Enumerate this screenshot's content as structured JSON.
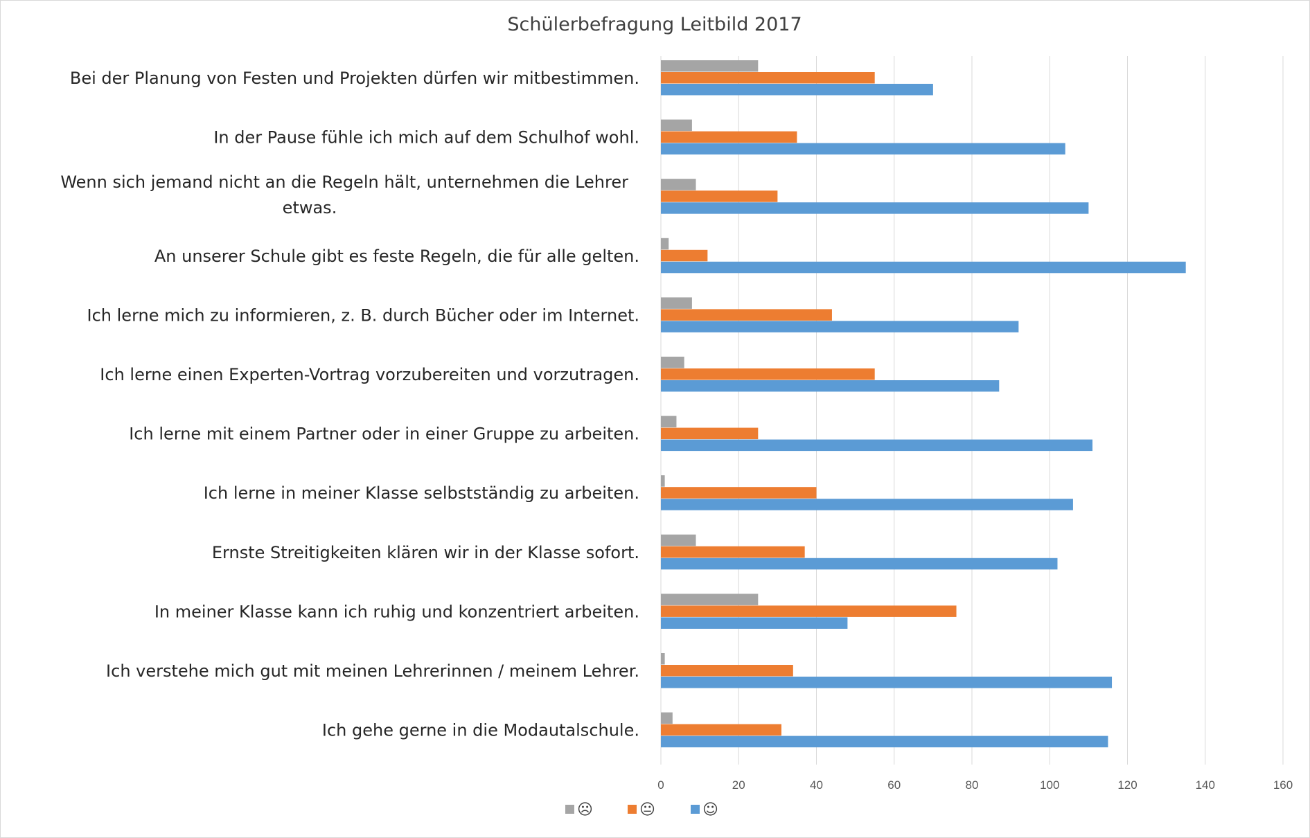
{
  "chart_data": {
    "type": "bar",
    "orientation": "horizontal",
    "title": "Schülerbefragung Leitbild 2017",
    "xlabel": "",
    "ylabel": "",
    "xlim": [
      0,
      160
    ],
    "ticks": [
      0,
      20,
      40,
      60,
      80,
      100,
      120,
      140,
      160
    ],
    "tick_labels": [
      "0",
      "20",
      "40",
      "60",
      "80",
      "100",
      "120",
      "140",
      "160"
    ],
    "grid": true,
    "legend_position": "bottom",
    "categories": [
      "Bei der Planung von Festen und Projekten dürfen wir mitbestimmen.",
      "In der Pause fühle ich mich auf dem Schulhof wohl.",
      "Wenn sich jemand nicht an die Regeln hält, unternehmen die Lehrer etwas.",
      "An unserer Schule gibt es feste Regeln, die für alle gelten.",
      "Ich lerne mich zu informieren, z. B. durch Bücher oder im Internet.",
      "Ich lerne einen Experten-Vortrag vorzubereiten und vorzutragen.",
      "Ich lerne mit einem Partner oder in einer Gruppe zu arbeiten.",
      "Ich lerne in meiner Klasse selbstständig zu arbeiten.",
      "Ernste Streitigkeiten klären wir in der Klasse sofort.",
      "In meiner Klasse kann ich ruhig und konzentriert arbeiten.",
      "Ich verstehe mich gut mit meinen Lehrerinnen / meinem Lehrer.",
      "Ich gehe gerne in die Modautalschule."
    ],
    "category_lines": [
      [
        "Bei der Planung von Festen und Projekten dürfen wir mitbestimmen."
      ],
      [
        "In der Pause fühle ich mich auf dem Schulhof wohl."
      ],
      [
        "Wenn sich jemand nicht an die Regeln hält, unternehmen die Lehrer",
        "etwas."
      ],
      [
        "An unserer Schule gibt es feste Regeln, die für alle gelten."
      ],
      [
        "Ich lerne mich zu informieren, z. B. durch Bücher oder im Internet."
      ],
      [
        "Ich lerne einen Experten-Vortrag vorzubereiten und vorzutragen."
      ],
      [
        "Ich lerne mit einem Partner oder in einer Gruppe zu arbeiten."
      ],
      [
        "Ich lerne in meiner Klasse selbstständig zu arbeiten."
      ],
      [
        "Ernste Streitigkeiten klären wir in der Klasse sofort."
      ],
      [
        "In meiner Klasse kann ich ruhig und konzentriert arbeiten."
      ],
      [
        "Ich verstehe mich gut mit meinen Lehrerinnen / meinem Lehrer."
      ],
      [
        "Ich gehe gerne in die Modautalschule."
      ]
    ],
    "series": [
      {
        "name": "☹",
        "color": "#a5a5a5",
        "values": [
          25,
          8,
          9,
          2,
          8,
          6,
          4,
          1,
          9,
          25,
          1,
          3
        ]
      },
      {
        "name": "😐",
        "color": "#ed7d31",
        "values": [
          55,
          35,
          30,
          12,
          44,
          55,
          25,
          40,
          37,
          76,
          34,
          31
        ]
      },
      {
        "name": "☺",
        "color": "#5b9bd5",
        "values": [
          70,
          104,
          110,
          135,
          92,
          87,
          111,
          106,
          102,
          48,
          116,
          115
        ]
      }
    ]
  }
}
